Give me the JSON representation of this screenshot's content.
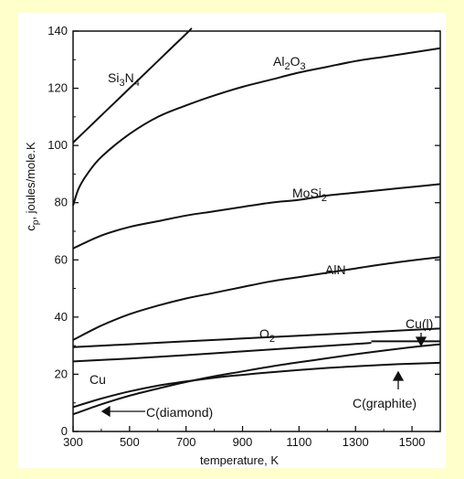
{
  "chart_data": {
    "type": "line",
    "xlabel": "temperature, K",
    "ylabel": "c_p, joules/mole.K",
    "xlim": [
      300,
      1600
    ],
    "ylim": [
      0,
      140
    ],
    "x_ticks": [
      300,
      500,
      700,
      900,
      1100,
      1300,
      1500
    ],
    "y_ticks": [
      0,
      20,
      40,
      60,
      80,
      100,
      120,
      140
    ],
    "grid": false,
    "legend": "none",
    "series": [
      {
        "name": "Si3N4",
        "x": [
          300,
          400,
          500,
          600,
          700,
          720
        ],
        "y": [
          101,
          110.5,
          120,
          129.5,
          139,
          141
        ]
      },
      {
        "name": "Al2O3",
        "x": [
          300,
          320,
          350,
          400,
          500,
          600,
          700,
          800,
          900,
          1000,
          1100,
          1200,
          1300,
          1400,
          1500,
          1600
        ],
        "y": [
          79,
          85,
          90,
          96,
          104,
          110,
          114,
          117.5,
          120.5,
          123,
          125.5,
          127.5,
          129.5,
          131,
          132.5,
          134
        ]
      },
      {
        "name": "MoSi2",
        "x": [
          300,
          400,
          500,
          600,
          700,
          800,
          900,
          1000,
          1100,
          1200,
          1300,
          1400,
          1500,
          1600
        ],
        "y": [
          64,
          68.5,
          71.5,
          73.5,
          75.5,
          77,
          78.5,
          80,
          81,
          82.5,
          83.5,
          84.5,
          85.5,
          86.5
        ]
      },
      {
        "name": "AlN",
        "x": [
          300,
          400,
          500,
          600,
          700,
          800,
          900,
          1000,
          1100,
          1200,
          1300,
          1400,
          1500,
          1600
        ],
        "y": [
          32,
          37,
          41,
          44,
          46.5,
          48.5,
          50.5,
          52.5,
          54,
          55.5,
          57,
          58.5,
          59.8,
          61
        ]
      },
      {
        "name": "O2",
        "x": [
          300,
          500,
          700,
          900,
          1100,
          1300,
          1500,
          1600
        ],
        "y": [
          29.5,
          30.5,
          31.5,
          32.5,
          33.5,
          34.5,
          35.5,
          36
        ]
      },
      {
        "name": "Cu",
        "x": [
          300,
          500,
          700,
          900,
          1100,
          1300,
          1356
        ],
        "y": [
          24.5,
          25.5,
          26.7,
          28,
          29.3,
          30.6,
          31
        ]
      },
      {
        "name": "Cu(l)",
        "x": [
          1356,
          1400,
          1500,
          1600
        ],
        "y": [
          31.5,
          31.5,
          31.5,
          31.5
        ]
      },
      {
        "name": "C(graphite)",
        "x": [
          300,
          400,
          500,
          600,
          700,
          800,
          900,
          1000,
          1100,
          1200,
          1300,
          1400,
          1500,
          1600
        ],
        "y": [
          8.5,
          11.5,
          14,
          16,
          17.5,
          18.8,
          19.8,
          20.7,
          21.5,
          22.2,
          22.8,
          23.3,
          23.7,
          24
        ]
      },
      {
        "name": "C(diamond)",
        "x": [
          300,
          400,
          500,
          600,
          700,
          800,
          900,
          1000,
          1100,
          1200,
          1300,
          1400,
          1500,
          1600
        ],
        "y": [
          6,
          9.5,
          12.5,
          15,
          17.3,
          19.3,
          21,
          22.7,
          24.2,
          25.6,
          27,
          28.3,
          29.5,
          30.5
        ]
      }
    ],
    "labels": {
      "si3n4": "Si3N4",
      "al2o3": "Al2O3",
      "mosi2": "MoSi2",
      "aln": "AlN",
      "o2": "O2",
      "cul": "Cu(l)",
      "cu": "Cu",
      "cgraphite": "C(graphite)",
      "cdiamond": "C(diamond)"
    }
  }
}
